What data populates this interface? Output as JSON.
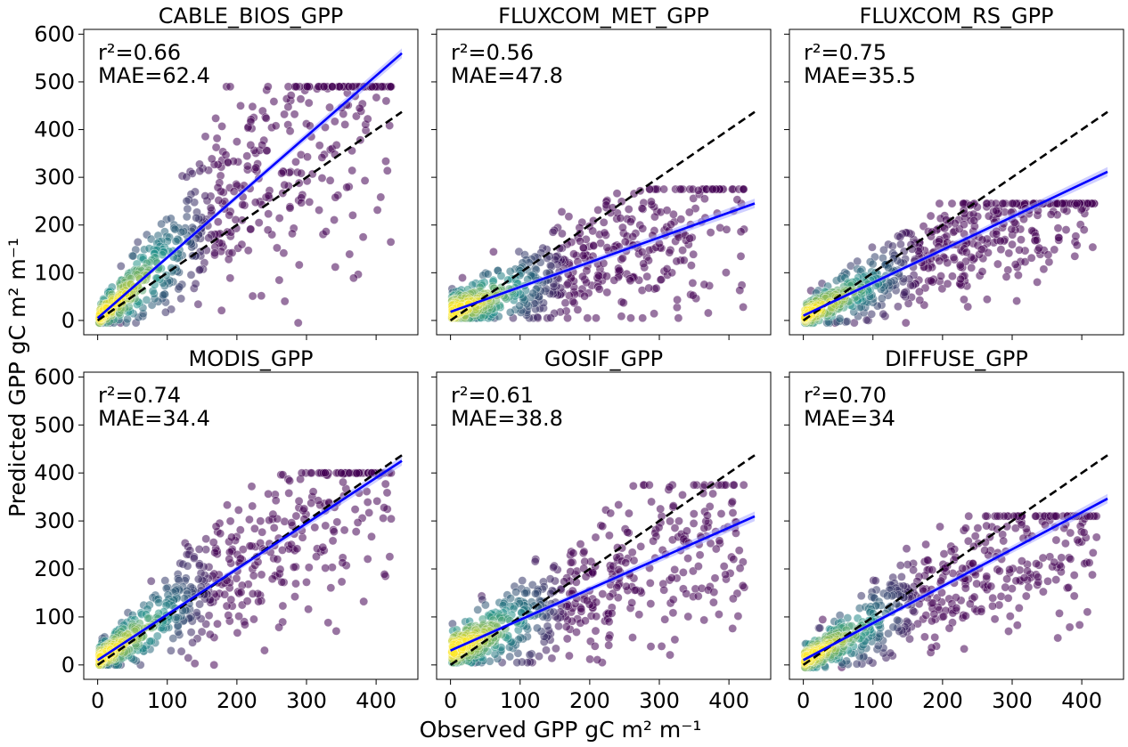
{
  "figure": {
    "xlabel": "Observed GPP gC m² m⁻¹",
    "ylabel": "Predicted GPP gC m² m⁻¹"
  },
  "chart_data": [
    {
      "type": "scatter",
      "title": "CABLE_BIOS_GPP",
      "annotation_r2": "r²=0.66",
      "annotation_mae": "MAE=62.4",
      "xlim": [
        -20,
        460
      ],
      "ylim": [
        -30,
        610
      ],
      "xticks": [
        0,
        100,
        200,
        300,
        400
      ],
      "yticks": [
        0,
        100,
        200,
        300,
        400,
        500,
        600
      ],
      "show_xticklabels": false,
      "show_yticklabels": true,
      "one_to_one": {
        "x": [
          0,
          437
        ],
        "y": [
          0,
          437
        ]
      },
      "fit": {
        "slope": 1.27,
        "intercept": 5,
        "x_range": [
          0,
          437
        ]
      },
      "scatter": {
        "slope": 1.27,
        "intercept": 5,
        "spread": 0.35,
        "min_y": -5,
        "max_y": 490,
        "n": 620,
        "seed": 11
      }
    },
    {
      "type": "scatter",
      "title": "FLUXCOM_MET_GPP",
      "annotation_r2": "r²=0.56",
      "annotation_mae": "MAE=47.8",
      "xlim": [
        -20,
        460
      ],
      "ylim": [
        -30,
        610
      ],
      "xticks": [
        0,
        100,
        200,
        300,
        400
      ],
      "yticks": [
        0,
        100,
        200,
        300,
        400,
        500,
        600
      ],
      "show_xticklabels": false,
      "show_yticklabels": false,
      "one_to_one": {
        "x": [
          0,
          437
        ],
        "y": [
          0,
          437
        ]
      },
      "fit": {
        "slope": 0.52,
        "intercept": 18,
        "x_range": [
          0,
          437
        ]
      },
      "scatter": {
        "slope": 0.52,
        "intercept": 18,
        "spread": 0.4,
        "min_y": 5,
        "max_y": 275,
        "n": 620,
        "seed": 23
      }
    },
    {
      "type": "scatter",
      "title": "FLUXCOM_RS_GPP",
      "annotation_r2": "r²=0.75",
      "annotation_mae": "MAE=35.5",
      "xlim": [
        -20,
        460
      ],
      "ylim": [
        -30,
        610
      ],
      "xticks": [
        0,
        100,
        200,
        300,
        400
      ],
      "yticks": [
        0,
        100,
        200,
        300,
        400,
        500,
        600
      ],
      "show_xticklabels": false,
      "show_yticklabels": false,
      "one_to_one": {
        "x": [
          0,
          437
        ],
        "y": [
          0,
          437
        ]
      },
      "fit": {
        "slope": 0.69,
        "intercept": 10,
        "x_range": [
          0,
          437
        ]
      },
      "scatter": {
        "slope": 0.69,
        "intercept": 10,
        "spread": 0.28,
        "min_y": -5,
        "max_y": 245,
        "n": 620,
        "seed": 37
      }
    },
    {
      "type": "scatter",
      "title": "MODIS_GPP",
      "annotation_r2": "r²=0.74",
      "annotation_mae": "MAE=34.4",
      "xlim": [
        -20,
        460
      ],
      "ylim": [
        -30,
        610
      ],
      "xticks": [
        0,
        100,
        200,
        300,
        400
      ],
      "yticks": [
        0,
        100,
        200,
        300,
        400,
        500,
        600
      ],
      "show_xticklabels": true,
      "show_yticklabels": true,
      "one_to_one": {
        "x": [
          0,
          437
        ],
        "y": [
          0,
          437
        ]
      },
      "fit": {
        "slope": 0.95,
        "intercept": 10,
        "x_range": [
          0,
          437
        ]
      },
      "scatter": {
        "slope": 0.95,
        "intercept": 10,
        "spread": 0.3,
        "min_y": 0,
        "max_y": 400,
        "n": 620,
        "seed": 41
      }
    },
    {
      "type": "scatter",
      "title": "GOSIF_GPP",
      "annotation_r2": "r²=0.61",
      "annotation_mae": "MAE=38.8",
      "xlim": [
        -20,
        460
      ],
      "ylim": [
        -30,
        610
      ],
      "xticks": [
        0,
        100,
        200,
        300,
        400
      ],
      "yticks": [
        0,
        100,
        200,
        300,
        400,
        500,
        600
      ],
      "show_xticklabels": true,
      "show_yticklabels": false,
      "one_to_one": {
        "x": [
          0,
          437
        ],
        "y": [
          0,
          437
        ]
      },
      "fit": {
        "slope": 0.64,
        "intercept": 30,
        "x_range": [
          0,
          437
        ]
      },
      "scatter": {
        "slope": 0.64,
        "intercept": 30,
        "spread": 0.35,
        "min_y": 5,
        "max_y": 375,
        "n": 620,
        "seed": 53
      }
    },
    {
      "type": "scatter",
      "title": "DIFFUSE_GPP",
      "annotation_r2": "r²=0.70",
      "annotation_mae": "MAE=34",
      "xlim": [
        -20,
        460
      ],
      "ylim": [
        -30,
        610
      ],
      "xticks": [
        0,
        100,
        200,
        300,
        400
      ],
      "yticks": [
        0,
        100,
        200,
        300,
        400,
        500,
        600
      ],
      "show_xticklabels": true,
      "show_yticklabels": false,
      "one_to_one": {
        "x": [
          0,
          437
        ],
        "y": [
          0,
          437
        ]
      },
      "fit": {
        "slope": 0.77,
        "intercept": 10,
        "x_range": [
          0,
          437
        ]
      },
      "scatter": {
        "slope": 0.77,
        "intercept": 10,
        "spread": 0.3,
        "min_y": -5,
        "max_y": 310,
        "n": 620,
        "seed": 67
      }
    }
  ],
  "colors": {
    "fit_line": "#0000ff",
    "fit_band": "#a8a8ff",
    "one_to_one": "#000000",
    "density_low": "#440154",
    "density_mid": "#21918c",
    "density_high": "#fde725"
  }
}
